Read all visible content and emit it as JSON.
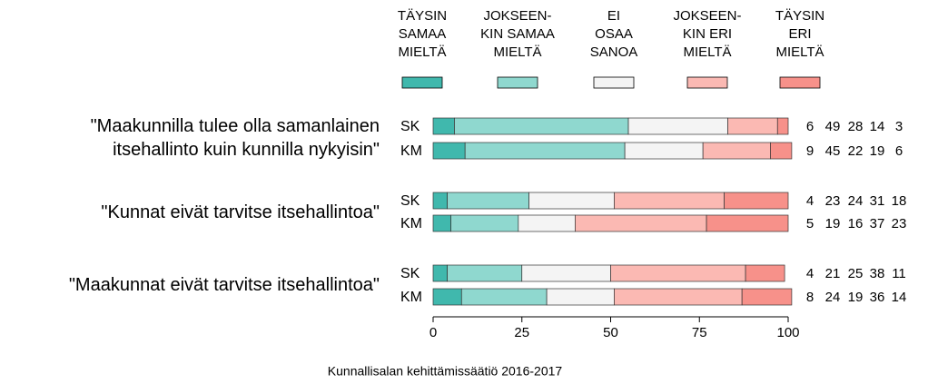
{
  "chart_data": {
    "type": "bar",
    "orientation": "horizontal",
    "stacked": true,
    "categories": [
      "SK",
      "KM",
      "SK",
      "KM",
      "SK",
      "KM"
    ],
    "group_labels": [
      "\"Maakunnilla tulee olla samanlainen\nitsehallinto kuin kunnilla nykyisin\"",
      "\"Kunnat eivät tarvitse itsehallintoa\"",
      "\"Maakunnat eivät tarvitse itsehallintoa\""
    ],
    "series": [
      {
        "name": "TÄYSIN\nSAMAA\nMIELTÄ",
        "color": "#40b8ad",
        "values": [
          6,
          9,
          4,
          5,
          4,
          8
        ]
      },
      {
        "name": "JOKSEEN-\nKIN SAMAA\nMIELTÄ",
        "color": "#8fd8cf",
        "values": [
          49,
          45,
          23,
          19,
          21,
          24
        ]
      },
      {
        "name": "EI\nOSAA\nSANOA",
        "color": "#f4f4f4",
        "values": [
          28,
          22,
          24,
          16,
          25,
          19
        ]
      },
      {
        "name": "JOKSEEN-\nKIN ERI\nMIELTÄ",
        "color": "#fbb9b3",
        "values": [
          14,
          19,
          31,
          37,
          38,
          36
        ]
      },
      {
        "name": "TÄYSIN\nERI\nMIELTÄ",
        "color": "#f7918a",
        "values": [
          3,
          6,
          18,
          23,
          11,
          14
        ]
      }
    ],
    "xlim": [
      0,
      100
    ],
    "xticks": [
      0,
      25,
      50,
      75,
      100
    ],
    "source": "Kunnallisalan kehittämissäätiö 2016-2017"
  }
}
